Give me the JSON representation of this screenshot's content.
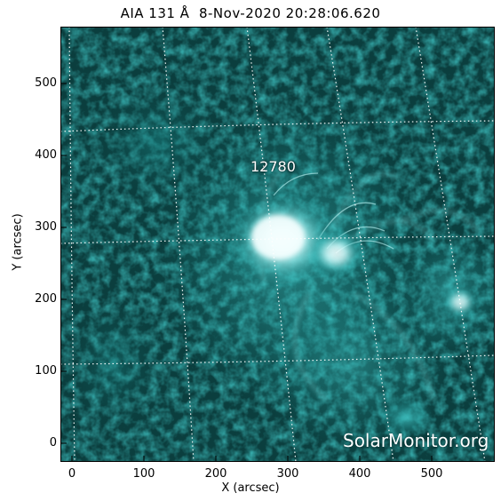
{
  "title": "AIA 131 Å  8-Nov-2020 20:28:06.620",
  "active_region": "12780",
  "watermark": "SolarMonitor.org",
  "axes": {
    "x_label": "X (arcsec)",
    "y_label": "Y (arcsec)",
    "x_ticks": [
      "0",
      "100",
      "200",
      "300",
      "400",
      "500"
    ],
    "y_ticks": [
      "0",
      "100",
      "200",
      "300",
      "400",
      "500"
    ]
  },
  "colors": {
    "background": "#0b3e3e",
    "plasma": "#1f9c9c",
    "bright": "#e8ffff",
    "grid": "#ffffff"
  }
}
